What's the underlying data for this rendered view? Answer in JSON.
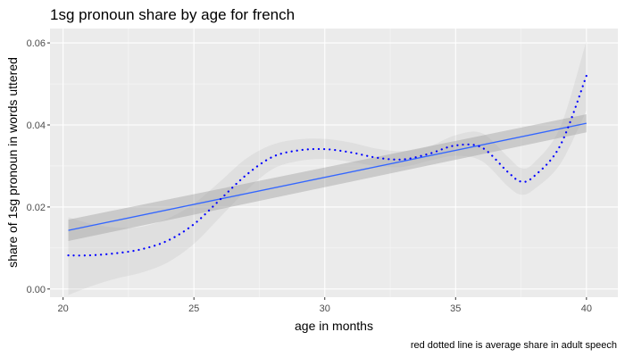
{
  "chart_data": {
    "type": "line",
    "title": "1sg pronoun share  by age for french",
    "xlabel": "age in months",
    "ylabel": "share of 1sg pronoun in words uttered",
    "caption": "red dotted line is average share in adult speech",
    "xlim": [
      19.5,
      41.2
    ],
    "ylim": [
      -0.002,
      0.0635
    ],
    "x_ticks": [
      20,
      25,
      30,
      35,
      40
    ],
    "x_tick_labels": [
      "20",
      "25",
      "30",
      "35",
      "40"
    ],
    "y_ticks": [
      0.0,
      0.02,
      0.04,
      0.06
    ],
    "y_tick_labels": [
      "0.00",
      "0.02",
      "0.04",
      "0.06"
    ],
    "grid": true,
    "series": [
      {
        "kind": "linear-fit",
        "color": "#3366ff",
        "x": [
          20.2,
          40.0
        ],
        "y": [
          0.0143,
          0.0404
        ],
        "ci_lower": [
          0.0117,
          0.0382
        ],
        "ci_upper": [
          0.0169,
          0.0426
        ]
      },
      {
        "kind": "smooth-dotted",
        "color": "#0000ff",
        "x": [
          20.2,
          21,
          22,
          23,
          24,
          25,
          26,
          27,
          28,
          29,
          30,
          31,
          32,
          33,
          34,
          35,
          36,
          37,
          37.5,
          38,
          39,
          40
        ],
        "y": [
          0.0082,
          0.0082,
          0.0087,
          0.0097,
          0.0118,
          0.0158,
          0.0218,
          0.0278,
          0.0322,
          0.0338,
          0.0341,
          0.0333,
          0.032,
          0.0316,
          0.033,
          0.035,
          0.0345,
          0.0285,
          0.0262,
          0.0275,
          0.035,
          0.052
        ],
        "ci_lower": [
          -0.0015,
          0.0005,
          0.0025,
          0.004,
          0.0065,
          0.011,
          0.0175,
          0.024,
          0.0292,
          0.0312,
          0.0317,
          0.031,
          0.03,
          0.0298,
          0.0313,
          0.0325,
          0.0312,
          0.025,
          0.023,
          0.0243,
          0.0305,
          0.0435
        ],
        "ci_upper": [
          0.0175,
          0.016,
          0.015,
          0.0152,
          0.0172,
          0.0208,
          0.0262,
          0.0318,
          0.0352,
          0.0365,
          0.0366,
          0.0357,
          0.0342,
          0.0336,
          0.0348,
          0.0375,
          0.038,
          0.0322,
          0.0295,
          0.0308,
          0.0395,
          0.0605
        ]
      }
    ],
    "colors": {
      "panel": "#ebebeb",
      "grid_major": "#ffffff",
      "grid_minor": "#f7f7f7",
      "ribbon": "#999999"
    }
  }
}
